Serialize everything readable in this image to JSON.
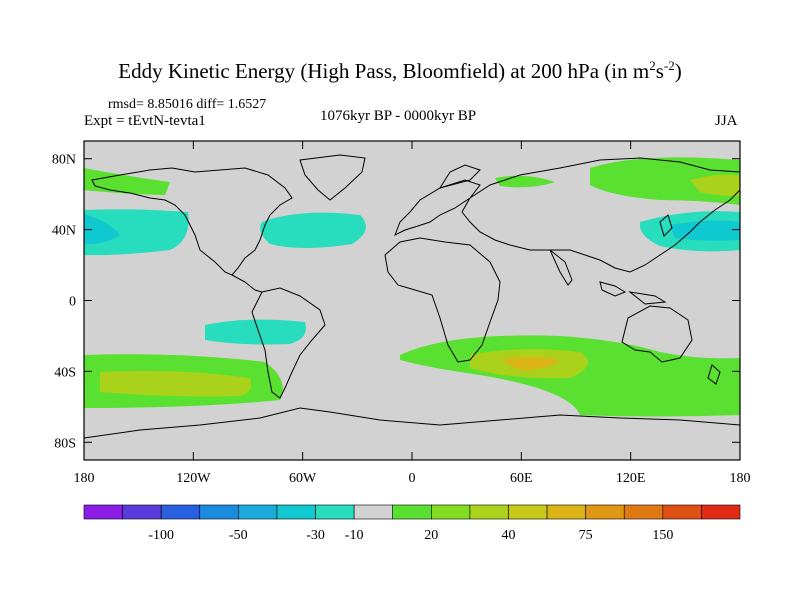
{
  "title": {
    "main": "Eddy Kinetic Energy (High Pass, Bloomfield) at 200 hPa (in m",
    "sup1": "2",
    "mid": "s",
    "sup2": "-2",
    "end": ")"
  },
  "stats": "rmsd= 8.85016 diff= 1.6527",
  "experiment": "Expt = tEvtN-tevta1",
  "period": "1076kyr BP - 0000kyr BP",
  "season": "JJA",
  "axes": {
    "lat_ticks": [
      "80N",
      "40N",
      "0",
      "40S",
      "80S"
    ],
    "lon_ticks": [
      "180",
      "120W",
      "60W",
      "0",
      "60E",
      "120E",
      "180"
    ]
  },
  "colorbar": {
    "labels": [
      "-100",
      "-50",
      "-30",
      "-10",
      "20",
      "40",
      "75",
      "150"
    ],
    "colors": [
      "#8a1ee6",
      "#5a3cdc",
      "#2860e0",
      "#1a8ce0",
      "#1aaadc",
      "#10c8d0",
      "#28dcbe",
      "#d2d2d2",
      "#5ae030",
      "#82dc20",
      "#aad21a",
      "#c8c818",
      "#dcb416",
      "#e09814",
      "#e07814",
      "#e05014",
      "#e02a14"
    ]
  },
  "map": {
    "background_color": "#d2d2d2",
    "field_colors": {
      "cyan": "#28dcbe",
      "teal": "#10c8d0",
      "green": "#5ae030",
      "yellow_green": "#aad21a",
      "orange": "#dcb416"
    }
  }
}
